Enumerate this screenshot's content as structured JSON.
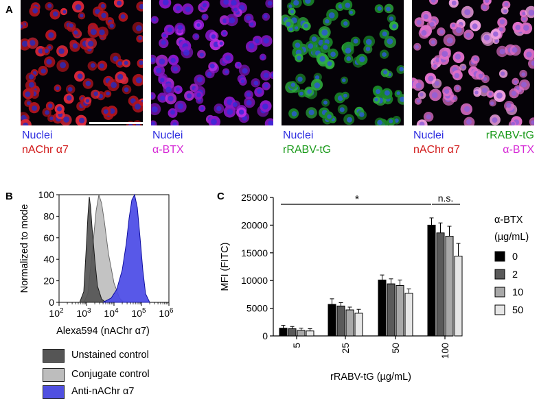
{
  "panels": {
    "a": {
      "letter": "A",
      "images": [
        {
          "id": "1",
          "lines": [
            {
              "text": "Nuclei",
              "color": "blue"
            },
            {
              "text": "nAChr α7",
              "color": "red"
            }
          ]
        },
        {
          "id": "2",
          "lines": [
            {
              "text": "Nuclei",
              "color": "blue"
            },
            {
              "text": "α-BTX",
              "color": "magenta"
            }
          ]
        },
        {
          "id": "3",
          "lines": [
            {
              "text": "Nuclei",
              "color": "blue"
            },
            {
              "text": "rRABV-tG",
              "color": "green"
            }
          ]
        },
        {
          "id": "4",
          "lines": [
            {
              "text": "Nuclei",
              "color": "blue"
            },
            {
              "text": "rRABV-tG",
              "color": "green"
            },
            {
              "text": "nAChr α7",
              "color": "red"
            },
            {
              "text": "α-BTX",
              "color": "magenta"
            }
          ]
        }
      ]
    },
    "b": {
      "letter": "B",
      "ylabel": "Normalized to mode",
      "xlabel": "Alexa594 (nAChr α7)",
      "yticks": [
        "0",
        "20",
        "40",
        "60",
        "80",
        "100"
      ],
      "xticks": [
        {
          "base": "10",
          "exp": "2"
        },
        {
          "base": "10",
          "exp": "3"
        },
        {
          "base": "10",
          "exp": "4"
        },
        {
          "base": "10",
          "exp": "5"
        },
        {
          "base": "10",
          "exp": "6"
        }
      ],
      "legend": [
        {
          "label": "Unstained control",
          "color": "#555555"
        },
        {
          "label": "Conjugate control",
          "color": "#bdbdbd"
        },
        {
          "label": "Anti-nAChr α7",
          "color": "#5050e0"
        }
      ]
    },
    "c": {
      "letter": "C",
      "sig_star": "*",
      "ns": "n.s.",
      "legend_title_1": "α-BTX",
      "legend_title_2": "(µg/mL)"
    }
  },
  "chart_data": [
    {
      "type": "area",
      "title": "",
      "xlabel": "Alexa594 (nAChr α7)",
      "ylabel": "Normalized to mode",
      "xscale": "log",
      "xlim": [
        100,
        1000000
      ],
      "ylim": [
        0,
        100
      ],
      "series": [
        {
          "name": "Unstained control",
          "color": "#555555",
          "log10_x": [
            2.75,
            2.9,
            3.0,
            3.05,
            3.1,
            3.15,
            3.2,
            3.3,
            3.4,
            3.55,
            3.7
          ],
          "y": [
            0,
            10,
            55,
            80,
            98,
            88,
            70,
            40,
            15,
            3,
            0
          ]
        },
        {
          "name": "Conjugate control",
          "color": "#bdbdbd",
          "log10_x": [
            2.9,
            3.05,
            3.2,
            3.35,
            3.45,
            3.55,
            3.65,
            3.8,
            4.0,
            4.2,
            4.35
          ],
          "y": [
            0,
            8,
            45,
            85,
            100,
            92,
            75,
            45,
            18,
            4,
            0
          ]
        },
        {
          "name": "Anti-nAChr α7",
          "color": "#5050e0",
          "log10_x": [
            3.6,
            3.9,
            4.1,
            4.3,
            4.45,
            4.55,
            4.65,
            4.75,
            4.85,
            4.95,
            5.05,
            5.15,
            5.3
          ],
          "y": [
            0,
            4,
            12,
            30,
            55,
            78,
            95,
            100,
            88,
            60,
            30,
            8,
            0
          ]
        }
      ]
    },
    {
      "type": "bar",
      "title": "",
      "xlabel": "rRABV-tG (µg/mL)",
      "ylabel": "MFI (FITC)",
      "ylim": [
        0,
        25000
      ],
      "yticks": [
        0,
        5000,
        10000,
        15000,
        20000,
        25000
      ],
      "categories": [
        "5",
        "25",
        "50",
        "100"
      ],
      "legend_title": "α-BTX (µg/mL)",
      "series": [
        {
          "name": "0",
          "color": "#000000",
          "values": [
            1400,
            5700,
            10100,
            20000
          ],
          "errors": [
            500,
            1000,
            900,
            1300
          ]
        },
        {
          "name": "2",
          "color": "#5a5a5a",
          "values": [
            1300,
            5400,
            9400,
            18600
          ],
          "errors": [
            400,
            600,
            900,
            1800
          ]
        },
        {
          "name": "10",
          "color": "#a8a8a8",
          "values": [
            1000,
            4700,
            9100,
            18000
          ],
          "errors": [
            400,
            500,
            1000,
            1800
          ]
        },
        {
          "name": "50",
          "color": "#e6e6e6",
          "values": [
            900,
            4100,
            7700,
            14400
          ],
          "errors": [
            400,
            700,
            800,
            2300
          ]
        }
      ]
    }
  ]
}
